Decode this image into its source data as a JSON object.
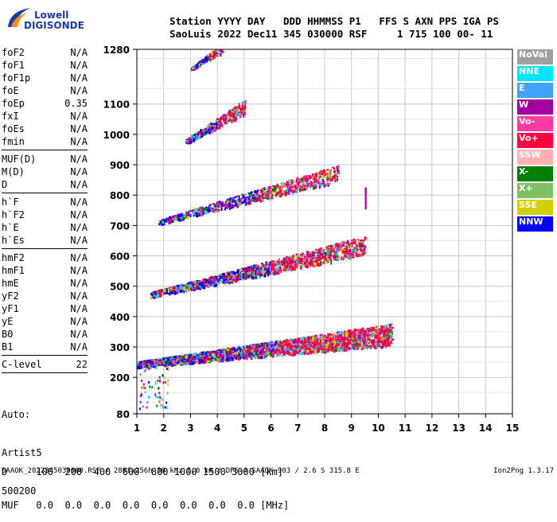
{
  "logo": {
    "line1": "Lowell",
    "line2": "DIGISONDE"
  },
  "header": {
    "line1": "Station YYYY DAY   DDD HHMMSS P1   FFS S AXN PPS IGA PS",
    "line2": "SaoLuis 2022 Dec11 345 030000 RSF     1 715 100 00- 11"
  },
  "params": {
    "group1": [
      {
        "label": "foF2",
        "value": "N/A"
      },
      {
        "label": "foF1",
        "value": "N/A"
      },
      {
        "label": "foF1p",
        "value": "N/A"
      },
      {
        "label": "foE",
        "value": "N/A"
      },
      {
        "label": "foEp",
        "value": "0.35"
      },
      {
        "label": "fxI",
        "value": "N/A"
      },
      {
        "label": "foEs",
        "value": "N/A"
      },
      {
        "label": "fmin",
        "value": "N/A"
      }
    ],
    "group2": [
      {
        "label": "MUF(D)",
        "value": "N/A"
      },
      {
        "label": "M(D)",
        "value": "N/A"
      },
      {
        "label": "D",
        "value": "N/A"
      }
    ],
    "group3": [
      {
        "label": "h`F",
        "value": "N/A"
      },
      {
        "label": "h`F2",
        "value": "N/A"
      },
      {
        "label": "h`E",
        "value": "N/A"
      },
      {
        "label": "h`Es",
        "value": "N/A"
      }
    ],
    "group4": [
      {
        "label": "hmF2",
        "value": "N/A"
      },
      {
        "label": "hmF1",
        "value": "N/A"
      },
      {
        "label": "hmE",
        "value": "N/A"
      },
      {
        "label": "yF2",
        "value": "N/A"
      },
      {
        "label": "yF1",
        "value": "N/A"
      },
      {
        "label": "yE",
        "value": "N/A"
      },
      {
        "label": "B0",
        "value": "N/A"
      },
      {
        "label": "B1",
        "value": "N/A"
      }
    ],
    "group5": [
      {
        "label": "C-level",
        "value": "22"
      }
    ]
  },
  "auto": {
    "line1": "Auto:",
    "line2": "Artist5",
    "line3": "500200"
  },
  "bottom_table": {
    "d_row": "D     100  200  400  600  800 1000 1500 3000 [km]",
    "muf_row": "MUF   0.0  0.0  0.0  0.0  0.0  0.0  0.0  0.0 [MHz]"
  },
  "footer": {
    "left": "SAAOK_2022345030000.RSF / 280fx256h 50 kHz 5.0 km / DPS-4 SAAOK 903 / 2.6 S 315.8 E",
    "right": "Ion2Png 1.3.17"
  },
  "legend": [
    {
      "label": "NoVal",
      "color": "#a0a0a0"
    },
    {
      "label": "NNE",
      "color": "#00e5ff"
    },
    {
      "label": "E",
      "color": "#3fa2ff"
    },
    {
      "label": "W",
      "color": "#a000a0"
    },
    {
      "label": "Vo-",
      "color": "#ff3aa0"
    },
    {
      "label": "Vo+",
      "color": "#ff0040"
    },
    {
      "label": "SSW",
      "color": "#ffb0b0"
    },
    {
      "label": "X-",
      "color": "#008000"
    },
    {
      "label": "X+",
      "color": "#80c060"
    },
    {
      "label": "SSE",
      "color": "#d0d000"
    },
    {
      "label": "NNW",
      "color": "#0000ff"
    }
  ],
  "chart_data": {
    "type": "scatter",
    "title": "",
    "xlabel": "",
    "ylabel": "",
    "x_ticks": [
      "1",
      "2",
      "3",
      "4",
      "5",
      "6",
      "7",
      "8",
      "9",
      "10",
      "11",
      "12",
      "13",
      "14",
      "15"
    ],
    "y_ticks": [
      "80",
      "200",
      "300",
      "400",
      "500",
      "600",
      "700",
      "800",
      "900",
      "1000",
      "1100",
      "1280"
    ],
    "xlim": [
      1,
      15
    ],
    "ylim": [
      80,
      1280
    ],
    "grid": true,
    "series": [
      {
        "name": "NNW",
        "color": "#0000ff"
      },
      {
        "name": "Vo+",
        "color": "#ff0040"
      },
      {
        "name": "W",
        "color": "#a000a0"
      },
      {
        "name": "E",
        "color": "#3fa2ff"
      },
      {
        "name": "X+",
        "color": "#80c060"
      },
      {
        "name": "SSE",
        "color": "#d0d000"
      },
      {
        "name": "Vo-",
        "color": "#ff3aa0"
      },
      {
        "name": "NNE",
        "color": "#00e5ff"
      },
      {
        "name": "X-",
        "color": "#008000"
      }
    ],
    "traces": [
      {
        "x_start": 1.0,
        "x_end": 10.5,
        "y_start": 240,
        "y_end": 325,
        "spread": 45,
        "density": 1.0
      },
      {
        "x_start": 1.5,
        "x_end": 9.5,
        "y_start": 470,
        "y_end": 620,
        "spread": 40,
        "density": 0.55
      },
      {
        "x_start": 1.8,
        "x_end": 8.5,
        "y_start": 710,
        "y_end": 860,
        "spread": 35,
        "density": 0.3
      },
      {
        "x_start": 2.8,
        "x_end": 5.0,
        "y_start": 975,
        "y_end": 1080,
        "spread": 30,
        "density": 0.15
      },
      {
        "x_start": 3.0,
        "x_end": 4.2,
        "y_start": 1215,
        "y_end": 1280,
        "spread": 20,
        "density": 0.06
      }
    ]
  }
}
